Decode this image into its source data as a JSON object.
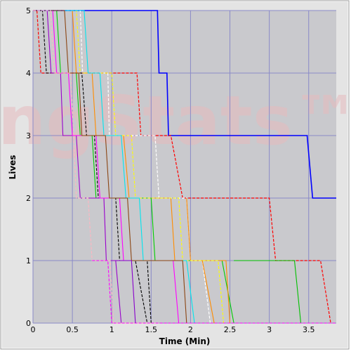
{
  "chart_data": {
    "type": "line",
    "title": "",
    "xlabel": "Time (Min)",
    "ylabel": "Lives",
    "xlim": [
      0,
      3.85
    ],
    "ylim": [
      0,
      5
    ],
    "x_ticks": [
      0,
      0.5,
      1,
      1.5,
      2,
      2.5,
      3,
      3.5
    ],
    "x_tick_labels": [
      "0",
      "0.5",
      "1",
      "1.5",
      "2",
      "2.5",
      "3",
      "3.5"
    ],
    "y_ticks": [
      0,
      1,
      2,
      3,
      4,
      5
    ],
    "y_tick_labels": [
      "0",
      "1",
      "2",
      "3",
      "4",
      "5"
    ],
    "grid": true,
    "watermark": "ngStats™",
    "colors": {
      "plot_bg": "#c9c9cd",
      "grid": "#8a8ac8",
      "bevel": "#b8b8b8"
    },
    "series": [
      {
        "color": "#0000ff",
        "dashed": false,
        "width": 1.6,
        "points": [
          [
            0,
            5
          ],
          [
            1.58,
            5
          ],
          [
            1.6,
            4
          ],
          [
            1.7,
            4
          ],
          [
            1.72,
            3
          ],
          [
            3.48,
            3
          ],
          [
            3.55,
            2
          ],
          [
            3.85,
            2
          ]
        ]
      },
      {
        "color": "#ff0000",
        "dashed": true,
        "width": 1.2,
        "points": [
          [
            0,
            5
          ],
          [
            0.05,
            5
          ],
          [
            0.1,
            4
          ],
          [
            1.32,
            4
          ],
          [
            1.37,
            3
          ],
          [
            1.75,
            3
          ],
          [
            1.9,
            2
          ],
          [
            3.0,
            2
          ],
          [
            3.08,
            1
          ],
          [
            3.65,
            1
          ],
          [
            3.78,
            0
          ]
        ]
      },
      {
        "color": "#ffffff",
        "dashed": true,
        "width": 1.2,
        "points": [
          [
            0,
            5
          ],
          [
            0.6,
            5
          ],
          [
            0.63,
            4
          ],
          [
            0.95,
            4
          ],
          [
            0.97,
            3
          ],
          [
            1.55,
            3
          ],
          [
            1.6,
            2
          ],
          [
            1.95,
            2
          ],
          [
            2.0,
            1
          ],
          [
            2.15,
            1
          ],
          [
            2.25,
            0
          ]
        ]
      },
      {
        "color": "#ff8c00",
        "dashed": false,
        "width": 1.1,
        "points": [
          [
            0,
            5
          ],
          [
            0.5,
            5
          ],
          [
            0.55,
            4
          ],
          [
            0.75,
            4
          ],
          [
            0.8,
            3
          ],
          [
            1.15,
            3
          ],
          [
            1.22,
            2
          ],
          [
            1.75,
            2
          ],
          [
            1.8,
            1
          ],
          [
            2.15,
            1
          ],
          [
            2.3,
            0
          ]
        ]
      },
      {
        "color": "#00cc00",
        "dashed": false,
        "width": 1.1,
        "points": [
          [
            0,
            5
          ],
          [
            0.3,
            5
          ],
          [
            0.35,
            4
          ],
          [
            0.55,
            4
          ],
          [
            0.6,
            3
          ],
          [
            0.75,
            3
          ],
          [
            0.8,
            2
          ],
          [
            1.5,
            2
          ],
          [
            1.55,
            1
          ],
          [
            2.4,
            1
          ],
          [
            2.55,
            0
          ]
        ]
      },
      {
        "color": "#00c000",
        "dashed": false,
        "width": 1.1,
        "points": [
          [
            2.55,
            1
          ],
          [
            3.32,
            1
          ],
          [
            3.4,
            0
          ]
        ]
      },
      {
        "color": "#ff8c00",
        "dashed": false,
        "width": 1.1,
        "points": [
          [
            1.95,
            2
          ],
          [
            2.0,
            1
          ],
          [
            2.45,
            1
          ],
          [
            2.5,
            0
          ]
        ]
      },
      {
        "color": "#ffff00",
        "dashed": true,
        "width": 1.1,
        "points": [
          [
            0,
            5
          ],
          [
            0.55,
            5
          ],
          [
            0.6,
            4
          ],
          [
            1.0,
            4
          ],
          [
            1.05,
            3
          ],
          [
            1.25,
            3
          ],
          [
            1.3,
            2
          ],
          [
            1.85,
            2
          ],
          [
            1.9,
            1
          ],
          [
            2.35,
            1
          ],
          [
            2.42,
            0
          ]
        ]
      },
      {
        "color": "#000000",
        "dashed": true,
        "width": 1.1,
        "points": [
          [
            0,
            5
          ],
          [
            0.12,
            5
          ],
          [
            0.17,
            4
          ],
          [
            0.62,
            4
          ],
          [
            0.68,
            3
          ],
          [
            0.78,
            3
          ],
          [
            0.83,
            2
          ],
          [
            1.05,
            2
          ],
          [
            1.1,
            1
          ],
          [
            1.3,
            1
          ],
          [
            1.45,
            0
          ]
        ]
      },
      {
        "color": "#000000",
        "dashed": true,
        "width": 1.1,
        "points": [
          [
            1.3,
            1
          ],
          [
            1.45,
            1
          ],
          [
            1.5,
            0
          ]
        ]
      },
      {
        "color": "#9900cc",
        "dashed": false,
        "width": 1.1,
        "points": [
          [
            0,
            5
          ],
          [
            0.18,
            5
          ],
          [
            0.23,
            4
          ],
          [
            0.35,
            4
          ],
          [
            0.38,
            3
          ],
          [
            0.55,
            3
          ],
          [
            0.6,
            2
          ],
          [
            0.9,
            2
          ],
          [
            0.93,
            1
          ],
          [
            1.05,
            1
          ],
          [
            1.12,
            0
          ]
        ]
      },
      {
        "color": "#ff00ff",
        "dashed": false,
        "width": 1.1,
        "points": [
          [
            0,
            5
          ],
          [
            0.25,
            5
          ],
          [
            0.3,
            4
          ],
          [
            0.45,
            4
          ],
          [
            0.5,
            3
          ],
          [
            0.8,
            3
          ],
          [
            0.85,
            2
          ],
          [
            1.1,
            2
          ],
          [
            1.15,
            1
          ],
          [
            1.78,
            1
          ],
          [
            1.85,
            0
          ]
        ]
      },
      {
        "color": "#00e5ee",
        "dashed": false,
        "width": 1.1,
        "points": [
          [
            0,
            5
          ],
          [
            0.65,
            5
          ],
          [
            0.7,
            4
          ],
          [
            0.85,
            4
          ],
          [
            0.9,
            3
          ],
          [
            1.12,
            3
          ],
          [
            1.18,
            2
          ],
          [
            1.35,
            2
          ],
          [
            1.4,
            1
          ],
          [
            1.95,
            1
          ],
          [
            2.05,
            0
          ]
        ]
      },
      {
        "color": "#8b4513",
        "dashed": false,
        "width": 1.1,
        "points": [
          [
            0,
            5
          ],
          [
            0.4,
            5
          ],
          [
            0.45,
            4
          ],
          [
            0.58,
            4
          ],
          [
            0.62,
            3
          ],
          [
            0.92,
            3
          ],
          [
            0.97,
            2
          ],
          [
            1.2,
            2
          ],
          [
            1.25,
            1
          ],
          [
            1.9,
            1
          ],
          [
            1.95,
            0
          ]
        ]
      },
      {
        "color": "#ffb6c1",
        "dashed": true,
        "width": 1.1,
        "points": [
          [
            0,
            5
          ],
          [
            0.22,
            5
          ],
          [
            0.27,
            4
          ],
          [
            0.48,
            4
          ],
          [
            0.55,
            2
          ],
          [
            0.7,
            2
          ],
          [
            0.75,
            1
          ],
          [
            0.98,
            1
          ],
          [
            1.02,
            0
          ],
          [
            1.6,
            0
          ]
        ]
      },
      {
        "color": "#ff00ff",
        "dashed": true,
        "width": 1.1,
        "points": [
          [
            0.75,
            1
          ],
          [
            0.95,
            1
          ],
          [
            1.0,
            0
          ],
          [
            3.85,
            0
          ]
        ]
      },
      {
        "color": "#8800cc",
        "dashed": false,
        "width": 1.1,
        "points": [
          [
            1.05,
            1
          ],
          [
            1.25,
            1
          ],
          [
            1.3,
            0
          ]
        ]
      }
    ]
  }
}
